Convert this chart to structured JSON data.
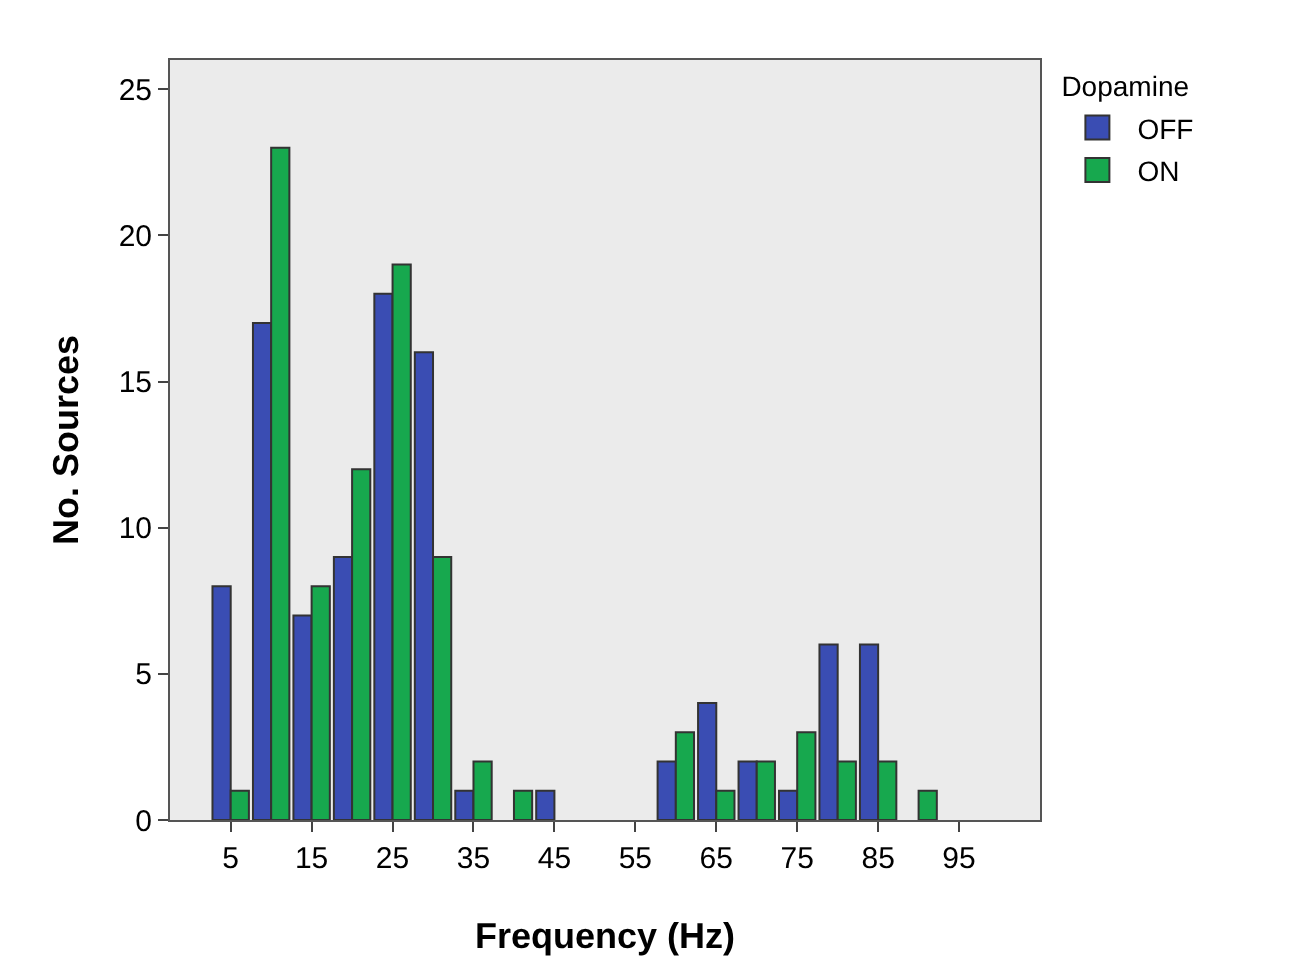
{
  "chart_data": {
    "type": "bar",
    "xlabel": "Frequency (Hz)",
    "ylabel": "No. Sources",
    "legend_title": "Dopamine",
    "x": [
      5,
      10,
      15,
      20,
      25,
      30,
      35,
      40,
      45,
      50,
      55,
      60,
      65,
      70,
      75,
      80,
      85,
      90,
      95
    ],
    "series": [
      {
        "name": "OFF",
        "color": "#3a4db3",
        "values": [
          8,
          17,
          7,
          9,
          18,
          16,
          1,
          0,
          1,
          0,
          0,
          2,
          4,
          2,
          1,
          6,
          6,
          0,
          0
        ]
      },
      {
        "name": "ON",
        "color": "#17a84e",
        "values": [
          1,
          23,
          8,
          12,
          19,
          9,
          2,
          1,
          0,
          0,
          0,
          3,
          1,
          2,
          3,
          2,
          2,
          1,
          0
        ]
      }
    ],
    "xlim": [
      -2.5,
      105
    ],
    "xticks": [
      5,
      15,
      25,
      35,
      45,
      55,
      65,
      75,
      85,
      95
    ],
    "ylim": [
      0,
      26
    ],
    "yticks": [
      0,
      5,
      10,
      15,
      20,
      25
    ],
    "grid": false,
    "legend": "top right"
  }
}
